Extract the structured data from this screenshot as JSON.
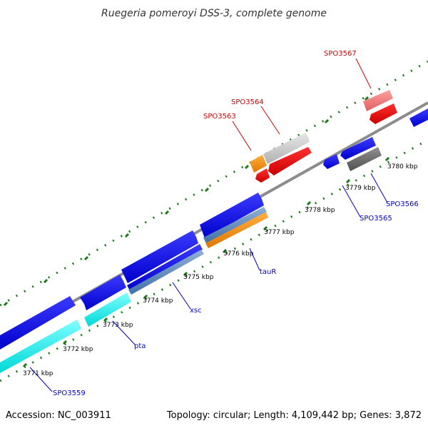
{
  "title": "Ruegeria pomeroyi DSS-3, complete genome",
  "accession": "Accession: NC_003911",
  "summary": "Topology: circular; Length: 4,109,442 bp; Genes: 3,872",
  "colors": {
    "backbone": "#8c8c8c",
    "tick": "#1a7a1a",
    "blue_label": "#0000cc",
    "red_label": "#cc0000"
  },
  "ticks": [
    "3771 kbp",
    "3772 kbp",
    "3773 kbp",
    "3774 kbp",
    "3775 kbp",
    "3776 kbp",
    "3777 kbp",
    "3778 kbp",
    "3779 kbp",
    "3780 kbp"
  ],
  "gene_labels": [
    "SPO3559",
    "pta",
    "xsc",
    "tauR",
    "SPO3565",
    "SPO3566",
    "SPO3563",
    "SPO3564",
    "SPO3567"
  ]
}
